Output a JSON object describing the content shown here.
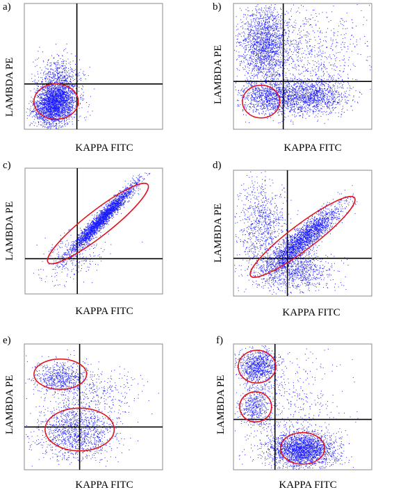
{
  "panels": [
    {
      "label": "a)",
      "xlabel": "KAPPA FITC",
      "ylabel": "LAMBDA PE"
    },
    {
      "label": "b)",
      "xlabel": "KAPPA FITC",
      "ylabel": "LAMBDA PE"
    },
    {
      "label": "c)",
      "xlabel": "KAPPA FITC",
      "ylabel": "LAMBDA PE"
    },
    {
      "label": "d)",
      "xlabel": "KAPPA FITC",
      "ylabel": "LAMBDA PE"
    },
    {
      "label": "e)",
      "xlabel": "KAPPA FITC",
      "ylabel": "LAMBDA PE"
    },
    {
      "label": "f)",
      "xlabel": "KAPPA FITC",
      "ylabel": "LAMBDA PE"
    }
  ],
  "chart_data": [
    {
      "type": "scatter",
      "panel": "a)",
      "xlabel": "KAPPA FITC",
      "ylabel": "LAMBDA PE",
      "xlim": [
        0,
        1
      ],
      "ylim": [
        0,
        1
      ],
      "quadrant_x": 0.38,
      "quadrant_y": 0.36,
      "point_color": "#1a1aff",
      "gate_color": "#e0141e",
      "clusters": [
        {
          "cx": 0.22,
          "cy": 0.2,
          "sx": 0.075,
          "sy": 0.085,
          "rho": 0.2,
          "n": 2600
        },
        {
          "cx": 0.24,
          "cy": 0.38,
          "sx": 0.08,
          "sy": 0.1,
          "rho": 0.1,
          "n": 700
        }
      ],
      "gates": [
        {
          "cx": 0.23,
          "cy": 0.22,
          "rx": 0.16,
          "ry": 0.14,
          "angle": 0
        }
      ]
    },
    {
      "type": "scatter",
      "panel": "b)",
      "xlabel": "KAPPA FITC",
      "ylabel": "LAMBDA PE",
      "xlim": [
        0,
        1
      ],
      "ylim": [
        0,
        1
      ],
      "quadrant_x": 0.36,
      "quadrant_y": 0.38,
      "point_color": "#1a1aff",
      "gate_color": "#e0141e",
      "clusters": [
        {
          "cx": 0.22,
          "cy": 0.68,
          "sx": 0.09,
          "sy": 0.15,
          "rho": 0,
          "n": 1800
        },
        {
          "cx": 0.28,
          "cy": 0.26,
          "sx": 0.12,
          "sy": 0.07,
          "rho": 0,
          "n": 1200
        },
        {
          "cx": 0.58,
          "cy": 0.26,
          "sx": 0.12,
          "sy": 0.07,
          "rho": 0,
          "n": 1100
        },
        {
          "cx": 0.55,
          "cy": 0.62,
          "sx": 0.2,
          "sy": 0.2,
          "rho": 0,
          "n": 700
        }
      ],
      "gates": [
        {
          "cx": 0.2,
          "cy": 0.22,
          "rx": 0.135,
          "ry": 0.13,
          "angle": 0
        }
      ]
    },
    {
      "type": "scatter",
      "panel": "c)",
      "xlabel": "KAPPA FITC",
      "ylabel": "LAMBDA PE",
      "xlim": [
        0,
        1
      ],
      "ylim": [
        0,
        1
      ],
      "quadrant_x": 0.38,
      "quadrant_y": 0.28,
      "point_color": "#1a1aff",
      "gate_color": "#e0141e",
      "clusters": [
        {
          "cx": 0.56,
          "cy": 0.6,
          "sx": 0.12,
          "sy": 0.14,
          "rho": 0.97,
          "n": 2800
        },
        {
          "cx": 0.35,
          "cy": 0.3,
          "sx": 0.12,
          "sy": 0.1,
          "rho": 0.3,
          "n": 250
        }
      ],
      "gates": [
        {
          "cx": 0.53,
          "cy": 0.56,
          "rx": 0.46,
          "ry": 0.1,
          "angle": -38
        }
      ]
    },
    {
      "type": "scatter",
      "panel": "d)",
      "xlabel": "KAPPA FITC",
      "ylabel": "LAMBDA PE",
      "xlim": [
        0,
        1
      ],
      "ylim": [
        0,
        1
      ],
      "quadrant_x": 0.39,
      "quadrant_y": 0.3,
      "point_color": "#1a1aff",
      "gate_color": "#e0141e",
      "clusters": [
        {
          "cx": 0.5,
          "cy": 0.45,
          "sx": 0.13,
          "sy": 0.13,
          "rho": 0.9,
          "n": 2300
        },
        {
          "cx": 0.2,
          "cy": 0.55,
          "sx": 0.09,
          "sy": 0.2,
          "rho": 0,
          "n": 900
        },
        {
          "cx": 0.45,
          "cy": 0.2,
          "sx": 0.14,
          "sy": 0.08,
          "rho": 0,
          "n": 900
        }
      ],
      "gates": [
        {
          "cx": 0.5,
          "cy": 0.47,
          "rx": 0.47,
          "ry": 0.1,
          "angle": -37
        }
      ]
    },
    {
      "type": "scatter",
      "panel": "e)",
      "xlabel": "KAPPA FITC",
      "ylabel": "LAMBDA PE",
      "xlim": [
        0,
        1
      ],
      "ylim": [
        0,
        1
      ],
      "quadrant_x": 0.4,
      "quadrant_y": 0.34,
      "point_color": "#1a1aff",
      "gate_color": "#e0141e",
      "clusters": [
        {
          "cx": 0.26,
          "cy": 0.73,
          "sx": 0.1,
          "sy": 0.07,
          "rho": 0,
          "n": 700
        },
        {
          "cx": 0.38,
          "cy": 0.3,
          "sx": 0.14,
          "sy": 0.11,
          "rho": 0,
          "n": 1300
        },
        {
          "cx": 0.55,
          "cy": 0.6,
          "sx": 0.15,
          "sy": 0.1,
          "rho": 0.3,
          "n": 250
        }
      ],
      "gates": [
        {
          "cx": 0.26,
          "cy": 0.76,
          "rx": 0.19,
          "ry": 0.12,
          "angle": 0
        },
        {
          "cx": 0.4,
          "cy": 0.32,
          "rx": 0.25,
          "ry": 0.17,
          "angle": 0
        }
      ]
    },
    {
      "type": "scatter",
      "panel": "f)",
      "xlabel": "KAPPA FITC",
      "ylabel": "LAMBDA PE",
      "xlim": [
        0,
        1
      ],
      "ylim": [
        0,
        1
      ],
      "quadrant_x": 0.3,
      "quadrant_y": 0.4,
      "point_color": "#1a1aff",
      "gate_color": "#e0141e",
      "clusters": [
        {
          "cx": 0.17,
          "cy": 0.83,
          "sx": 0.07,
          "sy": 0.07,
          "rho": 0,
          "n": 900
        },
        {
          "cx": 0.16,
          "cy": 0.5,
          "sx": 0.06,
          "sy": 0.08,
          "rho": 0,
          "n": 450
        },
        {
          "cx": 0.5,
          "cy": 0.16,
          "sx": 0.12,
          "sy": 0.07,
          "rho": 0,
          "n": 2400
        },
        {
          "cx": 0.4,
          "cy": 0.45,
          "sx": 0.2,
          "sy": 0.25,
          "rho": 0,
          "n": 500
        }
      ],
      "gates": [
        {
          "cx": 0.17,
          "cy": 0.82,
          "rx": 0.135,
          "ry": 0.13,
          "angle": 0
        },
        {
          "cx": 0.16,
          "cy": 0.5,
          "rx": 0.115,
          "ry": 0.12,
          "angle": 0
        },
        {
          "cx": 0.5,
          "cy": 0.17,
          "rx": 0.16,
          "ry": 0.125,
          "angle": 0
        }
      ]
    }
  ]
}
